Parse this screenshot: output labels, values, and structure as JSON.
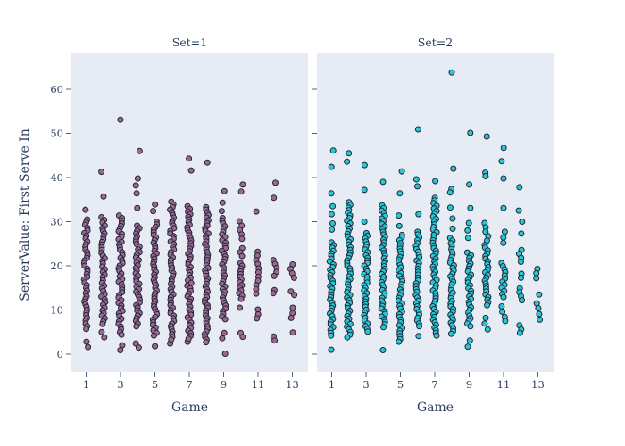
{
  "chart_data": {
    "type": "scatter",
    "subtype": "strip-faceted",
    "title": "",
    "xlabel": "Game",
    "ylabel": "ServerValue: First Serve In",
    "x_ticks": [
      1,
      3,
      5,
      7,
      9,
      11,
      13
    ],
    "y_ticks": [
      0,
      10,
      20,
      30,
      40,
      50,
      60
    ],
    "x_range": [
      0.1,
      13.9
    ],
    "y_range": [
      -4,
      68.3
    ],
    "grid": false,
    "legend": "none",
    "style": {
      "plot_bgcolor": "#e6ebf4",
      "paper_bgcolor": "#ffffff",
      "text_color": "#2a3f5f",
      "tick_color": "#56627a",
      "marker_outline": "#1e2736"
    },
    "facets": [
      {
        "title": "Set=1",
        "color": "#9e6790",
        "games": [
          {
            "game": 1,
            "values_discrete": [
              32.7,
              2.8,
              1.6
            ],
            "values_ranges": [
              [
                30.5,
                5.5,
                0.62
              ]
            ]
          },
          {
            "game": 2,
            "values_discrete": [
              41.3,
              35.7,
              5.0,
              3.8
            ],
            "values_ranges": [
              [
                31.0,
                6.5,
                0.62
              ]
            ]
          },
          {
            "game": 3,
            "values_discrete": [
              53.1,
              2.0,
              0.9
            ],
            "values_ranges": [
              [
                31.4,
                4.4,
                0.6
              ]
            ]
          },
          {
            "game": 4,
            "values_discrete": [
              46.0,
              39.8,
              38.2,
              36.4,
              33.1,
              2.4,
              1.5
            ],
            "values_ranges": [
              [
                29.1,
                5.8,
                0.6
              ]
            ]
          },
          {
            "game": 5,
            "values_discrete": [
              33.9,
              32.4,
              1.8
            ],
            "values_ranges": [
              [
                30.0,
                4.1,
                0.6
              ]
            ]
          },
          {
            "game": 6,
            "values_discrete": [
              2.4
            ],
            "values_ranges": [
              [
                34.5,
                3.2,
                0.6
              ]
            ]
          },
          {
            "game": 7,
            "values_discrete": [
              44.3,
              41.6,
              2.8
            ],
            "values_ranges": [
              [
                33.5,
                3.4,
                0.6
              ]
            ]
          },
          {
            "game": 8,
            "values_discrete": [
              43.4
            ],
            "values_ranges": [
              [
                33.3,
                2.4,
                0.6
              ]
            ]
          },
          {
            "game": 9,
            "values_discrete": [
              36.9,
              34.3,
              32.4,
              4.8,
              3.6,
              0.1
            ],
            "values_ranges": [
              [
                30.8,
                7.5,
                0.62
              ]
            ]
          },
          {
            "game": 10,
            "values_discrete": [
              38.4,
              36.8,
              10.5,
              4.8,
              3.9
            ],
            "values_ranges": [
              [
                30.1,
                25.7,
                1.0
              ],
              [
                24.0,
                22.0,
                0.9
              ],
              [
                20.6,
                12.1,
                0.62
              ]
            ]
          },
          {
            "game": 11,
            "values_discrete": [
              32.3,
              10.1,
              9.0,
              8.1
            ],
            "values_ranges": [
              [
                23.2,
                12.9,
                0.95
              ]
            ]
          },
          {
            "game": 12,
            "values_discrete": [
              38.8,
              35.4,
              14.5,
              13.8,
              4.0,
              3.1
            ],
            "values_ranges": [
              [
                21.3,
                17.6,
                0.9
              ]
            ]
          },
          {
            "game": 13,
            "values_discrete": [
              14.2,
              13.4,
              10.5,
              9.3,
              8.2,
              4.9
            ],
            "values_ranges": [
              [
                20.3,
                17.3,
                1.0
              ]
            ]
          }
        ]
      },
      {
        "title": "Set=2",
        "color": "#29c6d6",
        "games": [
          {
            "game": 1,
            "values_discrete": [
              46.1,
              42.4,
              36.4,
              33.5,
              31.7,
              29.6,
              28.2,
              1.0
            ],
            "values_ranges": [
              [
                25.3,
                4.1,
                0.62
              ]
            ]
          },
          {
            "game": 2,
            "values_discrete": [
              45.5,
              43.6
            ],
            "values_ranges": [
              [
                34.4,
                3.4,
                0.6
              ]
            ]
          },
          {
            "game": 3,
            "values_discrete": [
              42.8,
              37.2,
              30.0
            ],
            "values_ranges": [
              [
                27.4,
                4.8,
                0.62
              ]
            ]
          },
          {
            "game": 4,
            "values_discrete": [
              39.0,
              0.9
            ],
            "values_ranges": [
              [
                33.7,
                5.8,
                0.6
              ]
            ]
          },
          {
            "game": 5,
            "values_discrete": [
              41.4,
              36.4,
              31.4,
              29.0
            ],
            "values_ranges": [
              [
                27.0,
                2.8,
                0.62
              ]
            ]
          },
          {
            "game": 6,
            "values_discrete": [
              50.9,
              39.6,
              38.0,
              31.7,
              4.1
            ],
            "values_ranges": [
              [
                27.7,
                5.8,
                0.65
              ]
            ]
          },
          {
            "game": 7,
            "values_discrete": [
              39.2
            ],
            "values_ranges": [
              [
                35.4,
                4.1,
                0.6
              ]
            ]
          },
          {
            "game": 8,
            "values_discrete": [
              63.8,
              42.0,
              37.4,
              36.6,
              33.2,
              30.7,
              28.4
            ],
            "values_ranges": [
              [
                26.3,
                4.1,
                0.62
              ]
            ]
          },
          {
            "game": 9,
            "values_discrete": [
              50.1,
              38.4,
              33.1,
              29.7,
              28.0,
              26.3,
              3.1,
              1.7
            ],
            "values_ranges": [
              [
                23.0,
                6.1,
                0.62
              ]
            ]
          },
          {
            "game": 10,
            "values_discrete": [
              49.3,
              41.1,
              40.3,
              8.2,
              6.9,
              5.6
            ],
            "values_ranges": [
              [
                29.7,
                25.0,
                1.0
              ],
              [
                24.7,
                10.5,
                0.62
              ]
            ]
          },
          {
            "game": 11,
            "values_discrete": [
              46.7,
              43.7,
              39.8,
              33.1,
              27.7,
              26.4,
              25.2,
              10.8,
              9.6,
              8.4,
              7.5
            ],
            "values_ranges": [
              [
                20.6,
                12.9,
                0.7
              ]
            ]
          },
          {
            "game": 12,
            "values_discrete": [
              37.8,
              32.5,
              30.0,
              27.3,
              6.5,
              5.6,
              4.8
            ],
            "values_ranges": [
              [
                23.6,
                20.9,
                0.9
              ],
              [
                18.2,
                16.9,
                0.9
              ],
              [
                14.9,
                11.5,
                0.9
              ]
            ]
          },
          {
            "game": 13,
            "values_discrete": [
              19.3,
              18.3,
              17.2,
              13.5,
              11.5,
              10.4,
              9.1,
              7.8
            ],
            "values_ranges": []
          }
        ]
      }
    ]
  }
}
